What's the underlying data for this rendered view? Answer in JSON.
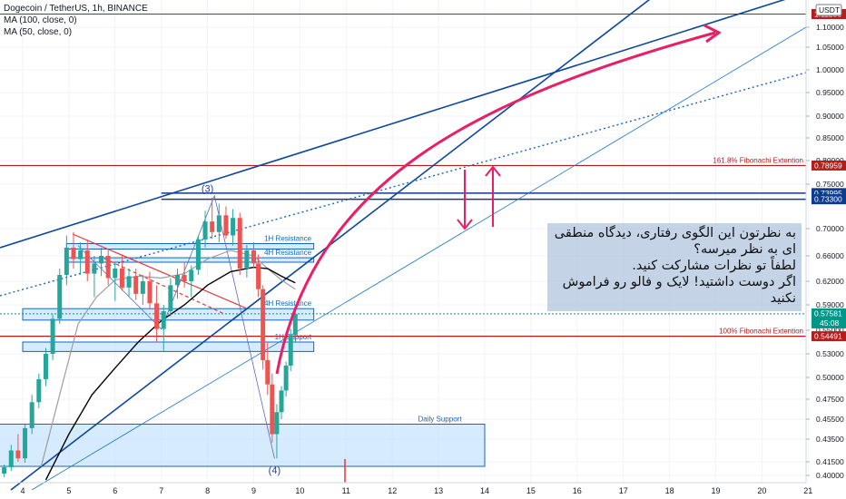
{
  "legend": {
    "title": "Dogecoin / TetherUS, 1h, BINANCE",
    "ma100": "MA (100, close, 0)",
    "ma50": "MA (50, close, 0)"
  },
  "axis_unit": "USDT",
  "note_lines": [
    "به نظرتون این الگوی رفتاری، دیدگاه منطقی",
    "ای به نظر میرسه؟",
    "لطفاً تو نظرات مشارکت کنید.",
    "اگر دوست داشتید! لایک و فالو رو فراموش",
    "نکنید"
  ],
  "colors": {
    "up": "#26a69a",
    "down": "#ef5350",
    "trend": "#0d47a1",
    "fib": "#b71c1c",
    "zone_fill": "#bbdefb",
    "zone_line": "#1565c0",
    "arrow": "#e91e63",
    "ma100": "#000000",
    "ma50": "#9e9e9e",
    "price": "#009688",
    "resist": "#0d3c8c"
  },
  "chart_data": {
    "type": "candlestick",
    "title": "Dogecoin / TetherUS, 1h, BINANCE",
    "x_ticks": [
      "4",
      "5",
      "6",
      "7",
      "8",
      "9",
      "10",
      "11",
      "12",
      "13",
      "14",
      "15",
      "16",
      "17",
      "18",
      "19",
      "20",
      "21"
    ],
    "y_ticks": [
      "1.10000",
      "1.05000",
      "1.00000",
      "0.95000",
      "0.90000",
      "0.85000",
      "0.80000",
      "0.75000",
      "0.70000",
      "0.66000",
      "0.62000",
      "0.59000",
      "0.55000",
      "0.53000",
      "0.50000",
      "0.47500",
      "0.45500",
      "0.43500",
      "0.41500",
      "0.40000"
    ],
    "ylim": [
      0.398,
      1.125
    ],
    "price_labels": [
      {
        "value": 1.1125,
        "text": "1.11250",
        "color": "#b71c1c"
      },
      {
        "value": 0.78959,
        "text": "0.78959",
        "color": "#b71c1c"
      },
      {
        "value": 0.73995,
        "text": "0.73995",
        "color": "#0d3c8c"
      },
      {
        "value": 0.733,
        "text": "0.73300",
        "color": "#0d3c8c"
      },
      {
        "value": 0.57581,
        "text": "0.57581",
        "sub": "45:08",
        "color": "#009688"
      },
      {
        "value": 0.54491,
        "text": "0.54491",
        "color": "#b71c1c"
      }
    ],
    "fib_levels": [
      {
        "value": 0.78959,
        "label": "161.8% Fibonachi Extention"
      },
      {
        "value": 0.54491,
        "label": "100% Fibonachi Extention"
      }
    ],
    "zones": [
      {
        "label": "1H Resistance",
        "top": 0.678,
        "bottom": 0.67
      },
      {
        "label": "4H Resistance",
        "top": 0.657,
        "bottom": 0.65
      },
      {
        "label": "4H Resistance",
        "top": 0.584,
        "bottom": 0.566
      },
      {
        "label": "1H Support",
        "top": 0.54,
        "bottom": 0.532
      },
      {
        "label": "Daily Support",
        "top": 0.45,
        "bottom": 0.41
      }
    ],
    "wave_labels": [
      "(3)",
      "(4)"
    ],
    "series": [
      {
        "name": "MA (100, close, 0)"
      },
      {
        "name": "MA (50, close, 0)"
      }
    ],
    "candles": [
      {
        "d": 3.6,
        "o": 0.402,
        "h": 0.412,
        "l": 0.398,
        "c": 0.409
      },
      {
        "d": 3.75,
        "o": 0.409,
        "h": 0.43,
        "l": 0.405,
        "c": 0.425
      },
      {
        "d": 3.9,
        "o": 0.425,
        "h": 0.44,
        "l": 0.415,
        "c": 0.418
      },
      {
        "d": 4.05,
        "o": 0.418,
        "h": 0.45,
        "l": 0.414,
        "c": 0.446
      },
      {
        "d": 4.2,
        "o": 0.446,
        "h": 0.48,
        "l": 0.44,
        "c": 0.472
      },
      {
        "d": 4.35,
        "o": 0.472,
        "h": 0.505,
        "l": 0.466,
        "c": 0.498
      },
      {
        "d": 4.5,
        "o": 0.498,
        "h": 0.535,
        "l": 0.49,
        "c": 0.53
      },
      {
        "d": 4.65,
        "o": 0.53,
        "h": 0.575,
        "l": 0.522,
        "c": 0.568
      },
      {
        "d": 4.8,
        "o": 0.568,
        "h": 0.64,
        "l": 0.56,
        "c": 0.63
      },
      {
        "d": 4.95,
        "o": 0.63,
        "h": 0.69,
        "l": 0.615,
        "c": 0.672
      },
      {
        "d": 5.1,
        "o": 0.672,
        "h": 0.695,
        "l": 0.64,
        "c": 0.655
      },
      {
        "d": 5.25,
        "o": 0.655,
        "h": 0.68,
        "l": 0.63,
        "c": 0.668
      },
      {
        "d": 5.4,
        "o": 0.668,
        "h": 0.684,
        "l": 0.62,
        "c": 0.632
      },
      {
        "d": 5.55,
        "o": 0.632,
        "h": 0.66,
        "l": 0.6,
        "c": 0.648
      },
      {
        "d": 5.7,
        "o": 0.648,
        "h": 0.672,
        "l": 0.628,
        "c": 0.66
      },
      {
        "d": 5.85,
        "o": 0.66,
        "h": 0.67,
        "l": 0.615,
        "c": 0.625
      },
      {
        "d": 6.0,
        "o": 0.625,
        "h": 0.65,
        "l": 0.595,
        "c": 0.64
      },
      {
        "d": 6.15,
        "o": 0.64,
        "h": 0.662,
        "l": 0.608,
        "c": 0.612
      },
      {
        "d": 6.3,
        "o": 0.612,
        "h": 0.64,
        "l": 0.6,
        "c": 0.628
      },
      {
        "d": 6.45,
        "o": 0.628,
        "h": 0.64,
        "l": 0.596,
        "c": 0.604
      },
      {
        "d": 6.6,
        "o": 0.604,
        "h": 0.63,
        "l": 0.59,
        "c": 0.62
      },
      {
        "d": 6.75,
        "o": 0.62,
        "h": 0.635,
        "l": 0.585,
        "c": 0.592
      },
      {
        "d": 6.9,
        "o": 0.592,
        "h": 0.615,
        "l": 0.54,
        "c": 0.552
      },
      {
        "d": 7.05,
        "o": 0.552,
        "h": 0.59,
        "l": 0.532,
        "c": 0.58
      },
      {
        "d": 7.2,
        "o": 0.58,
        "h": 0.625,
        "l": 0.572,
        "c": 0.615
      },
      {
        "d": 7.35,
        "o": 0.615,
        "h": 0.64,
        "l": 0.598,
        "c": 0.63
      },
      {
        "d": 7.5,
        "o": 0.63,
        "h": 0.65,
        "l": 0.612,
        "c": 0.62
      },
      {
        "d": 7.65,
        "o": 0.62,
        "h": 0.645,
        "l": 0.6,
        "c": 0.638
      },
      {
        "d": 7.8,
        "o": 0.638,
        "h": 0.69,
        "l": 0.63,
        "c": 0.684
      },
      {
        "d": 7.95,
        "o": 0.684,
        "h": 0.72,
        "l": 0.672,
        "c": 0.708
      },
      {
        "d": 8.1,
        "o": 0.708,
        "h": 0.735,
        "l": 0.685,
        "c": 0.695
      },
      {
        "d": 8.25,
        "o": 0.695,
        "h": 0.728,
        "l": 0.68,
        "c": 0.715
      },
      {
        "d": 8.4,
        "o": 0.715,
        "h": 0.725,
        "l": 0.685,
        "c": 0.69
      },
      {
        "d": 8.55,
        "o": 0.69,
        "h": 0.722,
        "l": 0.675,
        "c": 0.712
      },
      {
        "d": 8.7,
        "o": 0.712,
        "h": 0.718,
        "l": 0.63,
        "c": 0.64
      },
      {
        "d": 8.85,
        "o": 0.64,
        "h": 0.676,
        "l": 0.626,
        "c": 0.668
      },
      {
        "d": 9.0,
        "o": 0.668,
        "h": 0.68,
        "l": 0.64,
        "c": 0.648
      },
      {
        "d": 9.1,
        "o": 0.648,
        "h": 0.662,
        "l": 0.6,
        "c": 0.61
      },
      {
        "d": 9.2,
        "o": 0.61,
        "h": 0.615,
        "l": 0.51,
        "c": 0.522
      },
      {
        "d": 9.3,
        "o": 0.522,
        "h": 0.54,
        "l": 0.48,
        "c": 0.492
      },
      {
        "d": 9.4,
        "o": 0.492,
        "h": 0.505,
        "l": 0.432,
        "c": 0.44
      },
      {
        "d": 9.5,
        "o": 0.44,
        "h": 0.47,
        "l": 0.418,
        "c": 0.462
      },
      {
        "d": 9.6,
        "o": 0.462,
        "h": 0.49,
        "l": 0.455,
        "c": 0.485
      },
      {
        "d": 9.7,
        "o": 0.485,
        "h": 0.52,
        "l": 0.478,
        "c": 0.515
      },
      {
        "d": 9.8,
        "o": 0.515,
        "h": 0.552,
        "l": 0.508,
        "c": 0.546
      },
      {
        "d": 9.9,
        "o": 0.546,
        "h": 0.58,
        "l": 0.54,
        "c": 0.5758
      }
    ],
    "ma100": [
      [
        4.5,
        0.395
      ],
      [
        5.0,
        0.44
      ],
      [
        5.5,
        0.48
      ],
      [
        6.0,
        0.512
      ],
      [
        6.5,
        0.54
      ],
      [
        7.0,
        0.565
      ],
      [
        7.5,
        0.59
      ],
      [
        8.0,
        0.615
      ],
      [
        8.5,
        0.635
      ],
      [
        9.0,
        0.642
      ],
      [
        9.3,
        0.64
      ],
      [
        9.6,
        0.628
      ],
      [
        9.9,
        0.618
      ]
    ],
    "ma50": [
      [
        4.4,
        0.41
      ],
      [
        4.8,
        0.48
      ],
      [
        5.2,
        0.56
      ],
      [
        5.6,
        0.6
      ],
      [
        6.0,
        0.622
      ],
      [
        6.5,
        0.628
      ],
      [
        7.0,
        0.625
      ],
      [
        7.5,
        0.632
      ],
      [
        8.0,
        0.655
      ],
      [
        8.5,
        0.668
      ],
      [
        9.0,
        0.66
      ],
      [
        9.3,
        0.64
      ],
      [
        9.6,
        0.622
      ],
      [
        9.9,
        0.61
      ]
    ]
  }
}
